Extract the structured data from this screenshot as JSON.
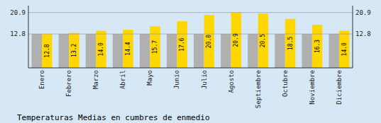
{
  "chart_data": {
    "type": "bar",
    "title": "Temperaturas Medias en cumbres de enmedio",
    "categories": [
      "Enero",
      "Febrero",
      "Marzo",
      "Abril",
      "Mayo",
      "Junio",
      "Julio",
      "Agosto",
      "Septiembre",
      "Octubre",
      "Noviembre",
      "Diciembre"
    ],
    "series": [
      {
        "color": "#B0B0B0",
        "values": [
          12.8,
          12.8,
          12.8,
          12.8,
          12.8,
          12.8,
          12.8,
          12.8,
          12.8,
          12.8,
          12.8,
          12.8
        ]
      },
      {
        "color": "#FFD700",
        "values": [
          12.8,
          13.2,
          14.0,
          14.4,
          15.7,
          17.6,
          20.0,
          20.9,
          20.5,
          18.5,
          16.3,
          14.0
        ],
        "data_labels": true,
        "value_labels": [
          "12.8",
          "13.2",
          "14.0",
          "14.4",
          "15.7",
          "17.6",
          "20.0",
          "20.9",
          "20.5",
          "18.5",
          "16.3",
          "14.0"
        ]
      }
    ],
    "ylim": [
      0,
      23.5
    ],
    "yticks": [
      12.8,
      20.9
    ],
    "grid": true
  }
}
